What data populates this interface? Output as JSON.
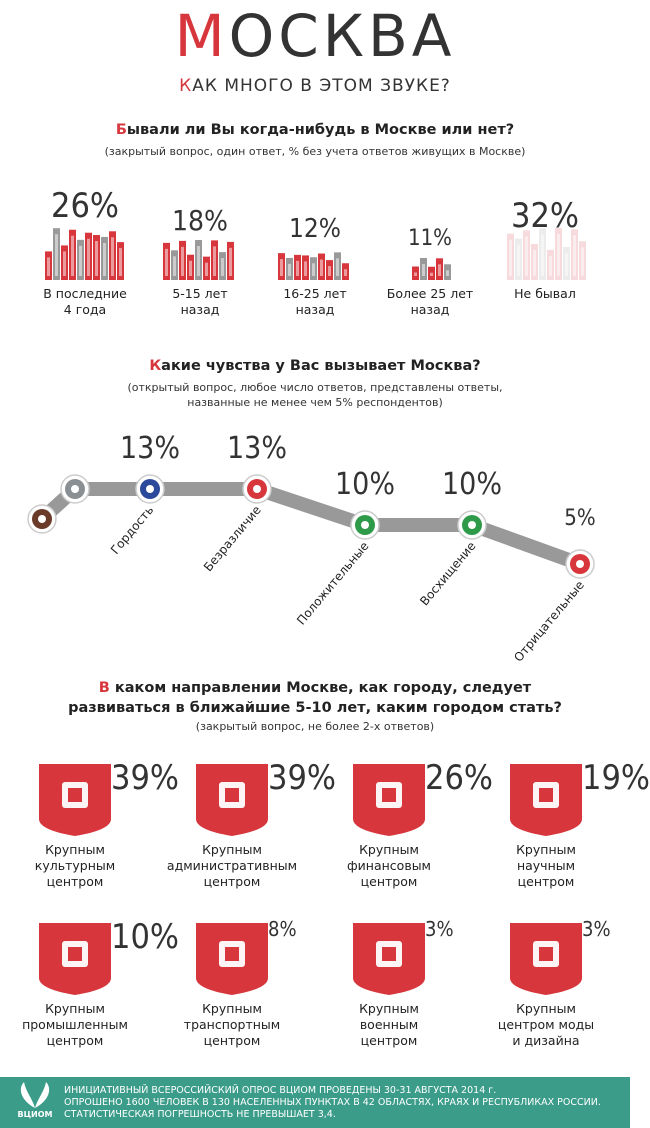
{
  "header": {
    "title": "МОСКВА",
    "subtitle": "КАК МНОГО В ЭТОМ ЗВУКЕ?"
  },
  "visits": {
    "question": "Бывали ли Вы когда-нибудь в Москве или нет?",
    "note": "(закрытый вопрос, один ответ, % без учета ответов живущих в Москве)",
    "items": [
      {
        "percent": "26%",
        "label": "В последние\n4 года"
      },
      {
        "percent": "18%",
        "label": "5-15 лет\nназад"
      },
      {
        "percent": "12%",
        "label": "16-25 лет\nназад"
      },
      {
        "percent": "11%",
        "label": "Более 25 лет\nназад"
      },
      {
        "percent": "32%",
        "label": "Не бывал"
      }
    ]
  },
  "feelings": {
    "question": "Какие чувства у Вас вызывает Москва?",
    "note": "(открытый вопрос, любое число ответов, представлены ответы,\nназванные не менее чем 5% респондентов)",
    "items": [
      {
        "percent": "13%",
        "label": "Гордость"
      },
      {
        "percent": "13%",
        "label": "Безразличие"
      },
      {
        "percent": "10%",
        "label": "Положительные"
      },
      {
        "percent": "10%",
        "label": "Восхищение"
      },
      {
        "percent": "5%",
        "label": "Отрицательные"
      }
    ]
  },
  "direction": {
    "question": "В каком направлении Москве, как городу, следует\nразвиваться в ближайшие 5-10 лет, каким городом стать?",
    "note": "(закрытый вопрос, не более 2-х ответов)",
    "items": [
      {
        "percent": "39%",
        "label": "Крупным\nкультурным\nцентром"
      },
      {
        "percent": "39%",
        "label": "Крупным\nадминистративным\nцентром"
      },
      {
        "percent": "26%",
        "label": "Крупным\nфинансовым\nцентром"
      },
      {
        "percent": "19%",
        "label": "Крупным\nнаучным\nцентром"
      },
      {
        "percent": "10%",
        "label": "Крупным\nпромышленным\nцентром"
      },
      {
        "percent": "8%",
        "label": "Крупным\nтранспортным\nцентром"
      },
      {
        "percent": "3%",
        "label": "Крупным\nвоенным\nцентром"
      },
      {
        "percent": "3%",
        "label": "Крупным\nцентром моды\nи дизайна"
      }
    ]
  },
  "footer": {
    "logo": "ВЦИОМ",
    "lines": [
      "ИНИЦИАТИВНЫЙ ВСЕРОССИЙСКИЙ ОПРОС ВЦИОМ ПРОВЕДЕНЫ 30-31 АВГУСТА 2014 г.",
      "ОПРОШЕНО 1600 ЧЕЛОВЕК В 130 НАСЕЛЕННЫХ ПУНКТАХ В 42 ОБЛАСТЯХ, КРАЯХ И РЕСПУБЛИКАХ РОССИИ.",
      "СТАТИСТИЧЕСКАЯ ПОГРЕШНОСТЬ НЕ ПРЕВЫШАЕТ 3,4."
    ]
  }
}
